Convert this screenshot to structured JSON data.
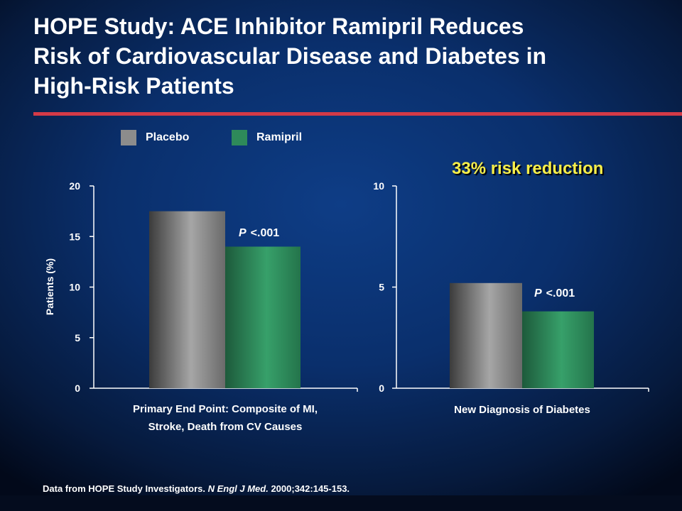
{
  "slide": {
    "title_line1": "HOPE Study: ACE Inhibitor Ramipril Reduces",
    "title_line2": "Risk of Cardiovascular Disease and Diabetes in",
    "title_line3": "High-Risk Patients",
    "risk_callout": "33% risk reduction",
    "footnote_prefix": "Data from HOPE Study Investigators. ",
    "footnote_journal": "N Engl J Med.",
    "footnote_suffix": " 2000;342:145-153."
  },
  "colors": {
    "placebo": "#8c8c8c",
    "ramipril": "#2e8a5a",
    "accent_rule": "#d43a47",
    "callout": "#f6ee4a"
  },
  "legend": [
    {
      "label": "Placebo",
      "color": "#8c8c8c"
    },
    {
      "label": "Ramipril",
      "color": "#2e8a5a"
    }
  ],
  "chart_data": [
    {
      "type": "bar",
      "categories": [
        "Primary End Point: Composite of MI, Stroke, Death from CV Causes"
      ],
      "category_lines": [
        "Primary End Point: Composite of MI,",
        "Stroke, Death from CV Causes"
      ],
      "series": [
        {
          "name": "Placebo",
          "values": [
            17.5
          ]
        },
        {
          "name": "Ramipril",
          "values": [
            14.0
          ]
        }
      ],
      "ylabel": "Patients (%)",
      "ylim": [
        0,
        20
      ],
      "yticks": [
        0,
        5,
        10,
        15,
        20
      ],
      "annotation": "<.001",
      "annotation_prefix": "P"
    },
    {
      "type": "bar",
      "categories": [
        "New Diagnosis of Diabetes"
      ],
      "category_lines": [
        "New Diagnosis of Diabetes"
      ],
      "series": [
        {
          "name": "Placebo",
          "values": [
            5.2
          ]
        },
        {
          "name": "Ramipril",
          "values": [
            3.8
          ]
        }
      ],
      "ylabel": "",
      "ylim": [
        0,
        10
      ],
      "yticks": [
        0,
        5,
        10
      ],
      "annotation": "<.001",
      "annotation_prefix": "P"
    }
  ]
}
